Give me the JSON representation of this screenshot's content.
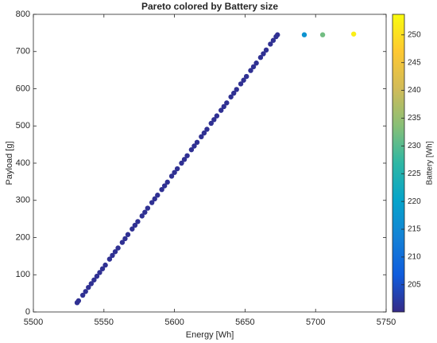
{
  "chart_data": {
    "type": "scatter",
    "title": "Pareto colored by Battery size",
    "xlabel": "Energy [Wh]",
    "ylabel": "Payload [g]",
    "x": [
      5531,
      5532,
      5535,
      5537,
      5539,
      5541,
      5543,
      5545,
      5547,
      5549,
      5551,
      5554,
      5556,
      5558,
      5560,
      5563,
      5565,
      5567,
      5570,
      5572,
      5574,
      5577,
      5579,
      5581,
      5584,
      5586,
      5588,
      5591,
      5593,
      5595,
      5598,
      5600,
      5602,
      5605,
      5607,
      5609,
      5612,
      5614,
      5616,
      5619,
      5621,
      5623,
      5626,
      5628,
      5630,
      5633,
      5635,
      5637,
      5640,
      5642,
      5644,
      5647,
      5649,
      5651,
      5654,
      5656,
      5658,
      5661,
      5663,
      5665,
      5668,
      5670,
      5672,
      5673,
      5692,
      5705,
      5727
    ],
    "values": [
      25,
      30,
      45,
      55,
      66,
      76,
      86,
      96,
      106,
      116,
      126,
      142,
      152,
      162,
      172,
      187,
      197,
      208,
      223,
      233,
      243,
      258,
      268,
      279,
      294,
      304,
      314,
      329,
      339,
      349,
      365,
      375,
      385,
      400,
      410,
      420,
      436,
      446,
      456,
      471,
      481,
      491,
      507,
      517,
      527,
      542,
      552,
      562,
      578,
      588,
      598,
      613,
      623,
      633,
      649,
      659,
      669,
      684,
      694,
      704,
      720,
      730,
      740,
      745,
      745,
      745,
      747
    ],
    "color_values": [
      201,
      201,
      201,
      201,
      201,
      201,
      201,
      201,
      201,
      201,
      201,
      201,
      201,
      201,
      201,
      201,
      201,
      201,
      201,
      201,
      201,
      201,
      201,
      201,
      201,
      201,
      201,
      201,
      201,
      201,
      201,
      201,
      201,
      201,
      201,
      201,
      201,
      201,
      201,
      201,
      201,
      201,
      201,
      201,
      201,
      201,
      201,
      201,
      201,
      201,
      201,
      201,
      201,
      201,
      201,
      201,
      201,
      201,
      201,
      201,
      201,
      201,
      201,
      201,
      217,
      232,
      252
    ],
    "colormap": [
      "#352a87",
      "#0f5cdd",
      "#1481d6",
      "#06a4ca",
      "#2eb7a4",
      "#87bf77",
      "#d1bb59",
      "#fec832",
      "#f9fb0e"
    ],
    "xlim": [
      5500,
      5750
    ],
    "xticks": [
      5500,
      5550,
      5600,
      5650,
      5700,
      5750
    ],
    "ylim": [
      0,
      800
    ],
    "yticks": [
      0,
      100,
      200,
      300,
      400,
      500,
      600,
      700,
      800
    ],
    "colorbar": {
      "label": "Battery [Wh]",
      "lim": [
        200.1,
        253.7
      ],
      "ticks": [
        205,
        210,
        215,
        220,
        225,
        230,
        235,
        240,
        245,
        250
      ]
    }
  }
}
